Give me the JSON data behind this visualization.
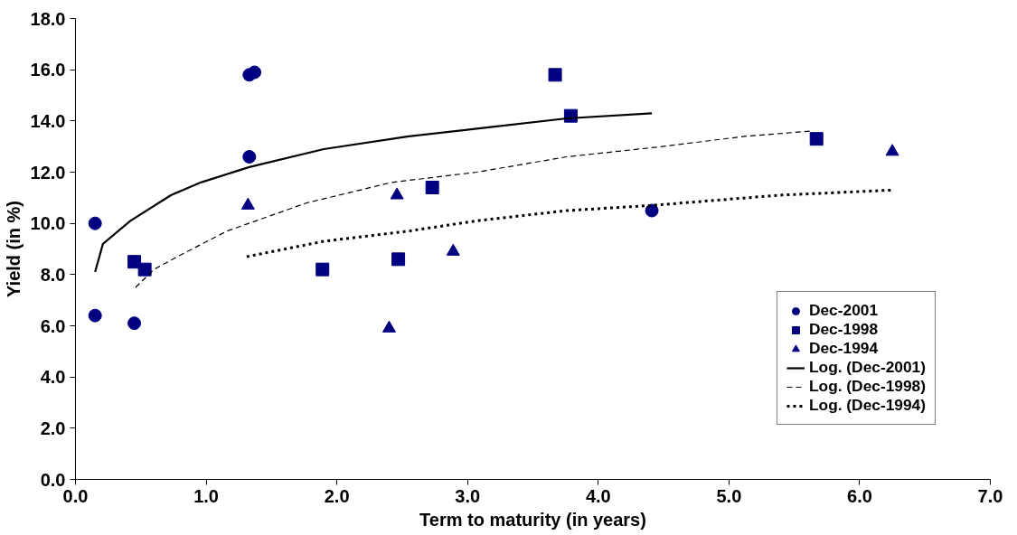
{
  "chart_data": {
    "type": "scatter",
    "xlabel": "Term to maturity (in years)",
    "ylabel": "Yield (in %)",
    "xlim": [
      0,
      7
    ],
    "ylim": [
      0,
      18
    ],
    "xticks": [
      {
        "value": 0,
        "label": "0.0"
      },
      {
        "value": 1,
        "label": "1.0"
      },
      {
        "value": 2,
        "label": "2.0"
      },
      {
        "value": 3,
        "label": "3.0"
      },
      {
        "value": 4,
        "label": "4.0"
      },
      {
        "value": 5,
        "label": "5.0"
      },
      {
        "value": 6,
        "label": "6.0"
      },
      {
        "value": 7,
        "label": "7.0"
      }
    ],
    "yticks": [
      {
        "value": 0,
        "label": "0.0"
      },
      {
        "value": 2,
        "label": "2.0"
      },
      {
        "value": 4,
        "label": "4.0"
      },
      {
        "value": 6,
        "label": "6.0"
      },
      {
        "value": 8,
        "label": "8.0"
      },
      {
        "value": 10,
        "label": "10.0"
      },
      {
        "value": 12,
        "label": "12.0"
      },
      {
        "value": 14,
        "label": "14.0"
      },
      {
        "value": 16,
        "label": "16.0"
      },
      {
        "value": 18,
        "label": "18.0"
      }
    ],
    "grid": false,
    "legend": "bottom right",
    "series": [
      {
        "name": "Dec-2001",
        "marker": "circle",
        "color": "#000080",
        "x": [
          0.15,
          0.15,
          0.45,
          1.33,
          1.33,
          1.37,
          4.41
        ],
        "values": [
          10.0,
          6.4,
          6.1,
          12.6,
          15.8,
          15.9,
          10.5
        ]
      },
      {
        "name": "Dec-1998",
        "marker": "square",
        "color": "#000080",
        "x": [
          0.45,
          0.53,
          1.89,
          2.47,
          2.73,
          3.67,
          3.79,
          5.67
        ],
        "values": [
          8.5,
          8.2,
          8.2,
          8.6,
          11.4,
          15.8,
          14.2,
          13.3
        ]
      },
      {
        "name": "Dec-1994",
        "marker": "triangle",
        "color": "#000080",
        "x": [
          1.32,
          2.46,
          2.89,
          2.4,
          6.25
        ],
        "values": [
          10.7,
          11.1,
          8.9,
          5.9,
          12.8
        ]
      },
      {
        "name": "Log. (Dec-2001)",
        "type": "line",
        "line_style": "solid",
        "color": "#000000",
        "x": [
          0.15,
          0.21,
          0.42,
          0.73,
          0.96,
          1.33,
          1.9,
          2.55,
          3.07,
          3.76,
          4.41
        ],
        "values": [
          8.1,
          9.2,
          10.1,
          11.1,
          11.6,
          12.2,
          12.9,
          13.4,
          13.7,
          14.1,
          14.3
        ]
      },
      {
        "name": "Log. (Dec-1998)",
        "type": "line",
        "line_style": "dashed",
        "color": "#000000",
        "x": [
          0.46,
          0.6,
          0.78,
          1.16,
          1.77,
          2.42,
          3.07,
          3.76,
          4.49,
          5.12,
          5.62
        ],
        "values": [
          7.5,
          8.2,
          8.7,
          9.7,
          10.8,
          11.6,
          12.0,
          12.6,
          13.0,
          13.4,
          13.6
        ]
      },
      {
        "name": "Log. (Dec-1994)",
        "type": "line",
        "line_style": "dotted",
        "color": "#000000",
        "x": [
          1.31,
          1.9,
          2.55,
          3.07,
          3.76,
          4.41,
          5.38,
          6.25
        ],
        "values": [
          8.7,
          9.3,
          9.7,
          10.1,
          10.5,
          10.7,
          11.1,
          11.3
        ]
      }
    ]
  }
}
